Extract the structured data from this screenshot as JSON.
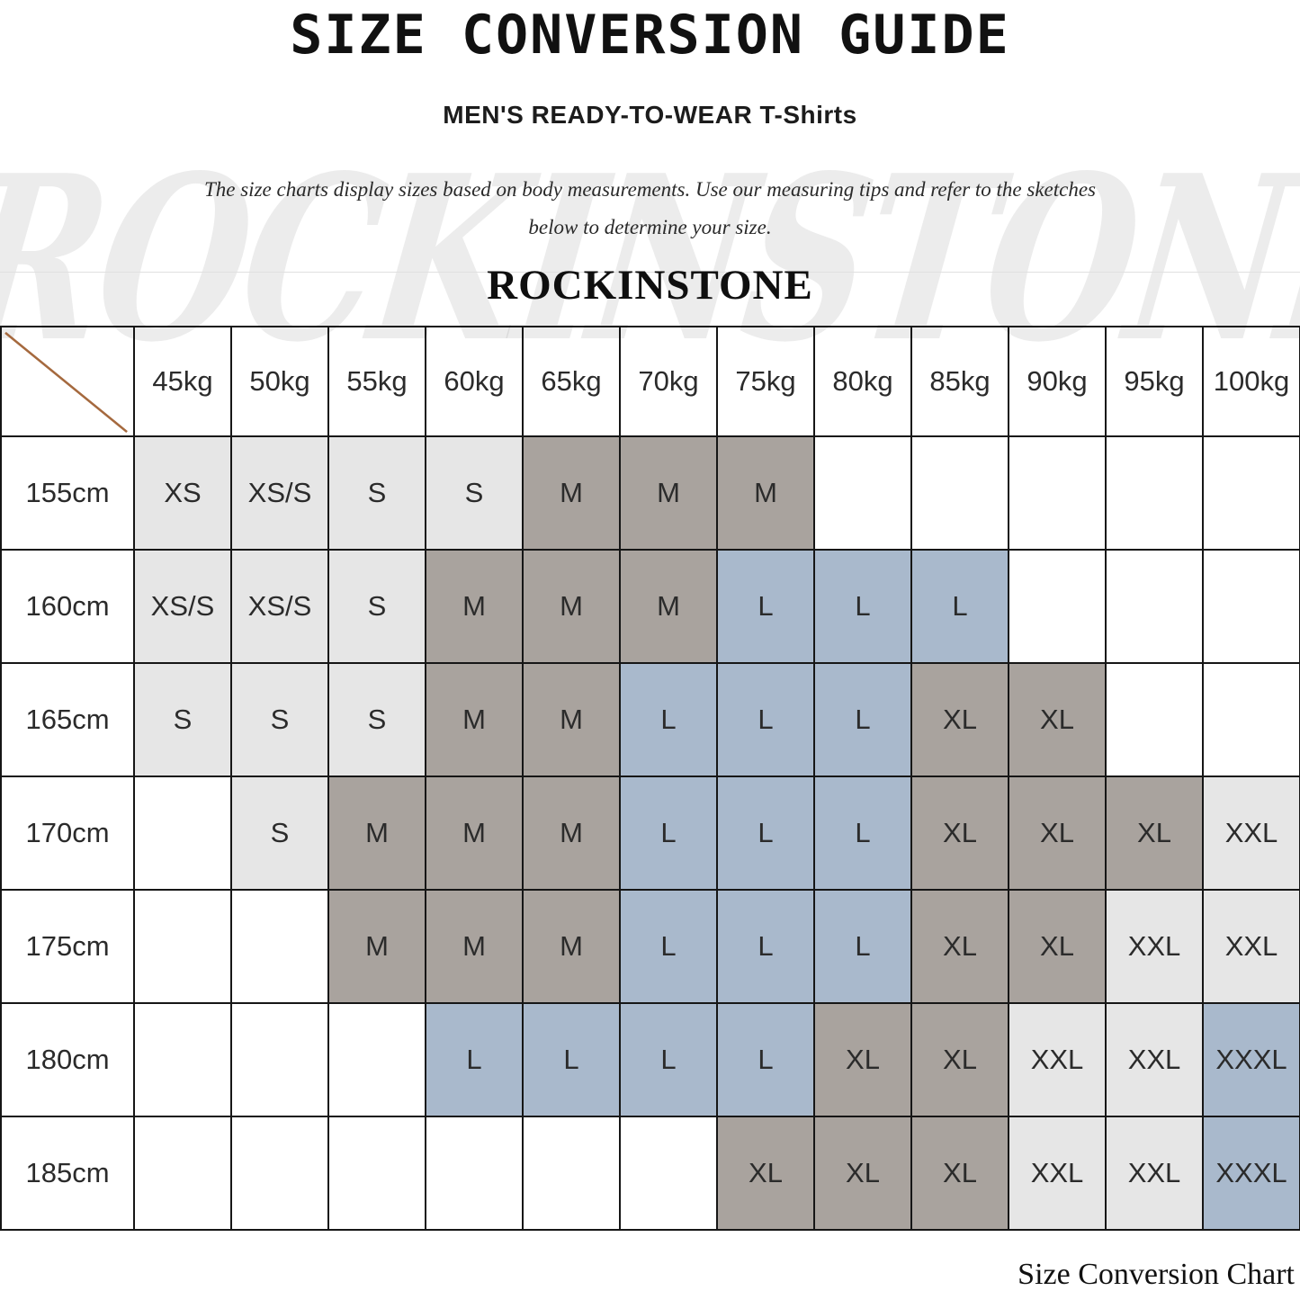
{
  "header": {
    "title": "SIZE CONVERSION GUIDE",
    "subtitle": "MEN'S READY-TO-WEAR T-Shirts",
    "description_line1": "The size charts display sizes based on body measurements. Use our measuring tips and refer to the sketches",
    "description_line2": "below to determine your size.",
    "brand": "ROCKINSTONE"
  },
  "watermark": "ROCKINSTONE",
  "footer": {
    "caption": "Size Conversion Chart"
  },
  "colors": {
    "cell_light_gray": "#e6e6e6",
    "cell_warm_gray": "#a9a39e",
    "cell_steel_blue": "#a9b9cc",
    "diagonal_line": "#a5693e",
    "grid_border": "#161616"
  },
  "chart_data": {
    "type": "table",
    "title": "SIZE CONVERSION GUIDE",
    "subtitle": "MEN'S READY-TO-WEAR T-Shirts",
    "columns": [
      "45kg",
      "50kg",
      "55kg",
      "60kg",
      "65kg",
      "70kg",
      "75kg",
      "80kg",
      "85kg",
      "90kg",
      "95kg",
      "100kg"
    ],
    "row_labels": [
      "155cm",
      "160cm",
      "165cm",
      "170cm",
      "175cm",
      "180cm",
      "185cm"
    ],
    "cell_color_legend": {
      "light": "light gray (#e6e6e6)",
      "dark": "warm gray (#a9a39e)",
      "blue": "steel blue (#a9b9cc)",
      "white": "empty"
    },
    "rows": [
      {
        "label": "155cm",
        "cells": [
          {
            "v": "XS",
            "c": "light"
          },
          {
            "v": "XS/S",
            "c": "light"
          },
          {
            "v": "S",
            "c": "light"
          },
          {
            "v": "S",
            "c": "light"
          },
          {
            "v": "M",
            "c": "dark"
          },
          {
            "v": "M",
            "c": "dark"
          },
          {
            "v": "M",
            "c": "dark"
          },
          {
            "v": "",
            "c": "white"
          },
          {
            "v": "",
            "c": "white"
          },
          {
            "v": "",
            "c": "white"
          },
          {
            "v": "",
            "c": "white"
          },
          {
            "v": "",
            "c": "white"
          }
        ]
      },
      {
        "label": "160cm",
        "cells": [
          {
            "v": "XS/S",
            "c": "light"
          },
          {
            "v": "XS/S",
            "c": "light"
          },
          {
            "v": "S",
            "c": "light"
          },
          {
            "v": "M",
            "c": "dark"
          },
          {
            "v": "M",
            "c": "dark"
          },
          {
            "v": "M",
            "c": "dark"
          },
          {
            "v": "L",
            "c": "blue"
          },
          {
            "v": "L",
            "c": "blue"
          },
          {
            "v": "L",
            "c": "blue"
          },
          {
            "v": "",
            "c": "white"
          },
          {
            "v": "",
            "c": "white"
          },
          {
            "v": "",
            "c": "white"
          }
        ]
      },
      {
        "label": "165cm",
        "cells": [
          {
            "v": "S",
            "c": "light"
          },
          {
            "v": "S",
            "c": "light"
          },
          {
            "v": "S",
            "c": "light"
          },
          {
            "v": "M",
            "c": "dark"
          },
          {
            "v": "M",
            "c": "dark"
          },
          {
            "v": "L",
            "c": "blue"
          },
          {
            "v": "L",
            "c": "blue"
          },
          {
            "v": "L",
            "c": "blue"
          },
          {
            "v": "XL",
            "c": "dark"
          },
          {
            "v": "XL",
            "c": "dark"
          },
          {
            "v": "",
            "c": "white"
          },
          {
            "v": "",
            "c": "white"
          }
        ]
      },
      {
        "label": "170cm",
        "cells": [
          {
            "v": "",
            "c": "white"
          },
          {
            "v": "S",
            "c": "light"
          },
          {
            "v": "M",
            "c": "dark"
          },
          {
            "v": "M",
            "c": "dark"
          },
          {
            "v": "M",
            "c": "dark"
          },
          {
            "v": "L",
            "c": "blue"
          },
          {
            "v": "L",
            "c": "blue"
          },
          {
            "v": "L",
            "c": "blue"
          },
          {
            "v": "XL",
            "c": "dark"
          },
          {
            "v": "XL",
            "c": "dark"
          },
          {
            "v": "XL",
            "c": "dark"
          },
          {
            "v": "XXL",
            "c": "light"
          }
        ]
      },
      {
        "label": "175cm",
        "cells": [
          {
            "v": "",
            "c": "white"
          },
          {
            "v": "",
            "c": "white"
          },
          {
            "v": "M",
            "c": "dark"
          },
          {
            "v": "M",
            "c": "dark"
          },
          {
            "v": "M",
            "c": "dark"
          },
          {
            "v": "L",
            "c": "blue"
          },
          {
            "v": "L",
            "c": "blue"
          },
          {
            "v": "L",
            "c": "blue"
          },
          {
            "v": "XL",
            "c": "dark"
          },
          {
            "v": "XL",
            "c": "dark"
          },
          {
            "v": "XXL",
            "c": "light"
          },
          {
            "v": "XXL",
            "c": "light"
          }
        ]
      },
      {
        "label": "180cm",
        "cells": [
          {
            "v": "",
            "c": "white"
          },
          {
            "v": "",
            "c": "white"
          },
          {
            "v": "",
            "c": "white"
          },
          {
            "v": "L",
            "c": "blue"
          },
          {
            "v": "L",
            "c": "blue"
          },
          {
            "v": "L",
            "c": "blue"
          },
          {
            "v": "L",
            "c": "blue"
          },
          {
            "v": "XL",
            "c": "dark"
          },
          {
            "v": "XL",
            "c": "dark"
          },
          {
            "v": "XXL",
            "c": "light"
          },
          {
            "v": "XXL",
            "c": "light"
          },
          {
            "v": "XXXL",
            "c": "blue"
          }
        ]
      },
      {
        "label": "185cm",
        "cells": [
          {
            "v": "",
            "c": "white"
          },
          {
            "v": "",
            "c": "white"
          },
          {
            "v": "",
            "c": "white"
          },
          {
            "v": "",
            "c": "white"
          },
          {
            "v": "",
            "c": "white"
          },
          {
            "v": "",
            "c": "white"
          },
          {
            "v": "XL",
            "c": "dark"
          },
          {
            "v": "XL",
            "c": "dark"
          },
          {
            "v": "XL",
            "c": "dark"
          },
          {
            "v": "XXL",
            "c": "light"
          },
          {
            "v": "XXL",
            "c": "light"
          },
          {
            "v": "XXXL",
            "c": "blue"
          }
        ]
      }
    ]
  }
}
